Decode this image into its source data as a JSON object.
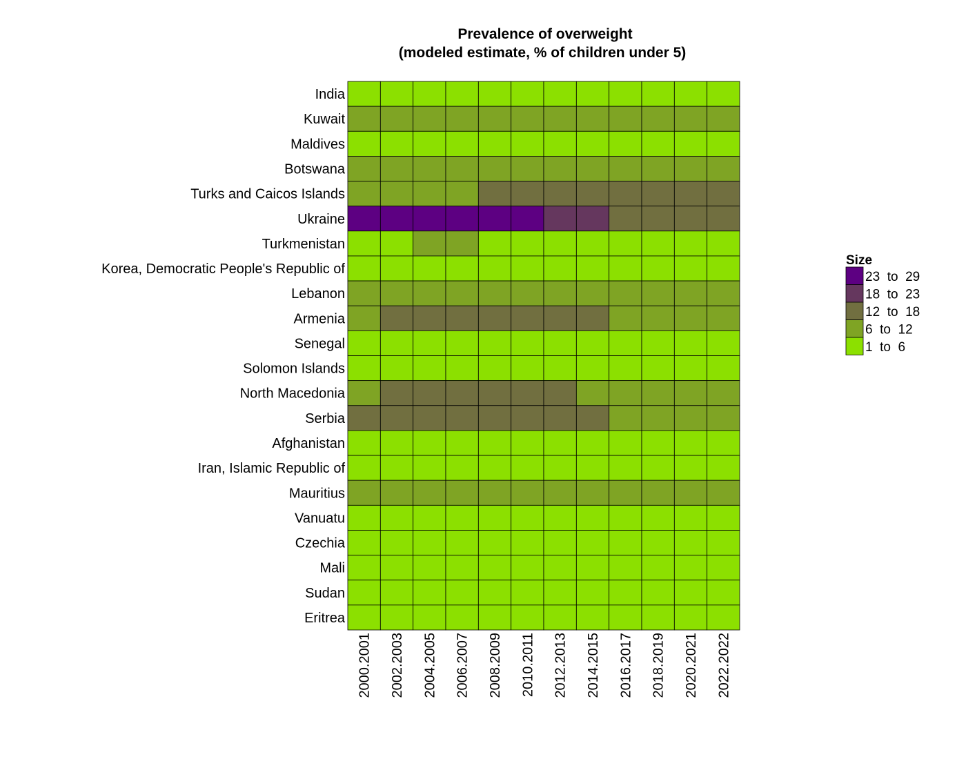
{
  "chart_data": {
    "type": "heatmap",
    "title_lines": [
      "Prevalence of overweight",
      "(modeled estimate, % of children under 5)"
    ],
    "xlabel": "",
    "ylabel": "",
    "x_categories": [
      "2000.2001",
      "2002.2003",
      "2004.2005",
      "2006.2007",
      "2008.2009",
      "2010.2011",
      "2012.2013",
      "2014.2015",
      "2016.2017",
      "2018.2019",
      "2020.2021",
      "2022.2022"
    ],
    "y_categories": [
      "India",
      "Kuwait",
      "Maldives",
      "Botswana",
      "Turks and Caicos Islands",
      "Ukraine",
      "Turkmenistan",
      "Korea, Democratic People's Republic of",
      "Lebanon",
      "Armenia",
      "Senegal",
      "Solomon Islands",
      "North Macedonia",
      "Serbia",
      "Afghanistan",
      "Iran, Islamic Republic of",
      "Mauritius",
      "Vanuatu",
      "Czechia",
      "Mali",
      "Sudan",
      "Eritrea"
    ],
    "legend": {
      "title": "Size",
      "position": "right",
      "bins": [
        {
          "label": "23  to  29",
          "color": "#5d0082"
        },
        {
          "label": "18  to  23",
          "color": "#65375e"
        },
        {
          "label": "12  to  18",
          "color": "#716f40"
        },
        {
          "label": "6  to  12",
          "color": "#7fa424"
        },
        {
          "label": "1  to  6",
          "color": "#8ce000"
        }
      ]
    },
    "bin_index_values_note_removed": "",
    "cell_bins": [
      [
        4,
        4,
        4,
        4,
        4,
        4,
        4,
        4,
        4,
        4,
        4,
        4
      ],
      [
        3,
        3,
        3,
        3,
        3,
        3,
        3,
        3,
        3,
        3,
        3,
        3
      ],
      [
        4,
        4,
        4,
        4,
        4,
        4,
        4,
        4,
        4,
        4,
        4,
        4
      ],
      [
        3,
        3,
        3,
        3,
        3,
        3,
        3,
        3,
        3,
        3,
        3,
        3
      ],
      [
        3,
        3,
        3,
        3,
        2,
        2,
        2,
        2,
        2,
        2,
        2,
        2
      ],
      [
        0,
        0,
        0,
        0,
        0,
        0,
        1,
        1,
        2,
        2,
        2,
        2
      ],
      [
        4,
        4,
        3,
        3,
        4,
        4,
        4,
        4,
        4,
        4,
        4,
        4
      ],
      [
        4,
        4,
        4,
        4,
        4,
        4,
        4,
        4,
        4,
        4,
        4,
        4
      ],
      [
        3,
        3,
        3,
        3,
        3,
        3,
        3,
        3,
        3,
        3,
        3,
        3
      ],
      [
        3,
        2,
        2,
        2,
        2,
        2,
        2,
        2,
        3,
        3,
        3,
        3
      ],
      [
        4,
        4,
        4,
        4,
        4,
        4,
        4,
        4,
        4,
        4,
        4,
        4
      ],
      [
        4,
        4,
        4,
        4,
        4,
        4,
        4,
        4,
        4,
        4,
        4,
        4
      ],
      [
        3,
        2,
        2,
        2,
        2,
        2,
        2,
        3,
        3,
        3,
        3,
        3
      ],
      [
        2,
        2,
        2,
        2,
        2,
        2,
        2,
        2,
        3,
        3,
        3,
        3
      ],
      [
        4,
        4,
        4,
        4,
        4,
        4,
        4,
        4,
        4,
        4,
        4,
        4
      ],
      [
        4,
        4,
        4,
        4,
        4,
        4,
        4,
        4,
        4,
        4,
        4,
        4
      ],
      [
        3,
        3,
        3,
        3,
        3,
        3,
        3,
        3,
        3,
        3,
        3,
        3
      ],
      [
        4,
        4,
        4,
        4,
        4,
        4,
        4,
        4,
        4,
        4,
        4,
        4
      ],
      [
        4,
        4,
        4,
        4,
        4,
        4,
        4,
        4,
        4,
        4,
        4,
        4
      ],
      [
        4,
        4,
        4,
        4,
        4,
        4,
        4,
        4,
        4,
        4,
        4,
        4
      ],
      [
        4,
        4,
        4,
        4,
        4,
        4,
        4,
        4,
        4,
        4,
        4,
        4
      ],
      [
        4,
        4,
        4,
        4,
        4,
        4,
        4,
        4,
        4,
        4,
        4,
        4
      ]
    ],
    "grid": false
  }
}
